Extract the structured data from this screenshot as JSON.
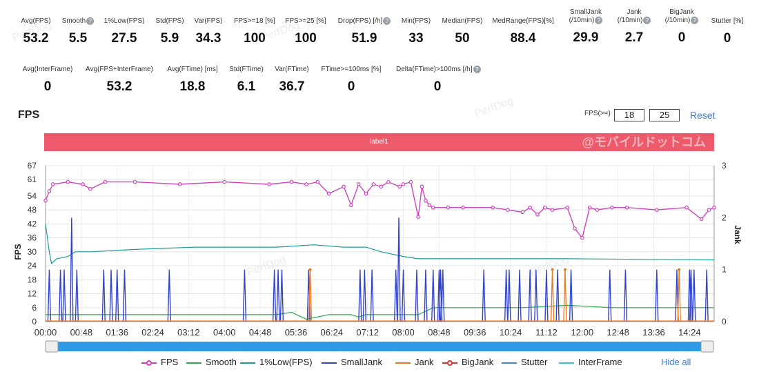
{
  "stats_row1": [
    {
      "label": "Avg(FPS)",
      "value": "53.2",
      "help": false
    },
    {
      "label": "Smooth",
      "value": "5.5",
      "help": true
    },
    {
      "label": "1%Low(FPS)",
      "value": "27.5",
      "help": false
    },
    {
      "label": "Std(FPS)",
      "value": "5.9",
      "help": false
    },
    {
      "label": "Var(FPS)",
      "value": "34.3",
      "help": false
    },
    {
      "label": "FPS>=18 [%]",
      "value": "100",
      "help": false
    },
    {
      "label": "FPS>=25 [%]",
      "value": "100",
      "help": false
    },
    {
      "label": "Drop(FPS) [/h]",
      "value": "51.9",
      "help": true
    },
    {
      "label": "Min(FPS)",
      "value": "33",
      "help": false
    },
    {
      "label": "Median(FPS)",
      "value": "50",
      "help": false
    },
    {
      "label": "MedRange(FPS)[%]",
      "value": "88.4",
      "help": false
    },
    {
      "label": "SmallJank\n(/10min)",
      "value": "29.9",
      "help": true
    },
    {
      "label": "Jank\n(/10min)",
      "value": "2.7",
      "help": true
    },
    {
      "label": "BigJank\n(/10min)",
      "value": "0",
      "help": true
    },
    {
      "label": "Stutter [%]",
      "value": "0",
      "help": false
    }
  ],
  "stats_row2": [
    {
      "label": "Avg(InterFrame)",
      "value": "0",
      "help": false
    },
    {
      "label": "Avg(FPS+InterFrame)",
      "value": "53.2",
      "help": false
    },
    {
      "label": "Avg(FTime) [ms]",
      "value": "18.8",
      "help": false
    },
    {
      "label": "Std(FTime)",
      "value": "6.1",
      "help": false
    },
    {
      "label": "Var(FTime)",
      "value": "36.7",
      "help": false
    },
    {
      "label": "FTime>=100ms [%]",
      "value": "0",
      "help": false
    },
    {
      "label": "Delta(FTime)>100ms [/h]",
      "value": "0",
      "help": true
    }
  ],
  "section_title": "FPS",
  "threshold": {
    "label": "FPS(>=)",
    "low": "18",
    "high": "25",
    "reset_label": "Reset"
  },
  "label_bar": {
    "text": "label1",
    "watermark": "@モバイルドットコム"
  },
  "legend": [
    {
      "name": "FPS",
      "color": "#cc44bb",
      "marker": true
    },
    {
      "name": "Smooth",
      "color": "#2ea84a",
      "marker": false
    },
    {
      "name": "1%Low(FPS)",
      "color": "#1a9a9a",
      "marker": false
    },
    {
      "name": "SmallJank",
      "color": "#3344cc",
      "marker": false
    },
    {
      "name": "Jank",
      "color": "#f07a20",
      "marker": false
    },
    {
      "name": "BigJank",
      "color": "#e03030",
      "marker": true
    },
    {
      "name": "Stutter",
      "color": "#3a86e0",
      "marker": false
    },
    {
      "name": "InterFrame",
      "color": "#30c8d8",
      "marker": false
    }
  ],
  "hide_all_label": "Hide all",
  "chart_data": {
    "type": "line",
    "ylabel": "FPS",
    "y2label": "Jank",
    "y_ticks": [
      0,
      6,
      12,
      18,
      24,
      30,
      36,
      42,
      48,
      54,
      61,
      67
    ],
    "ylim": [
      0,
      67
    ],
    "y2_ticks": [
      0,
      1,
      2,
      3
    ],
    "y2lim": [
      0,
      3
    ],
    "x_ticks": [
      "00:00",
      "00:48",
      "01:36",
      "02:24",
      "03:12",
      "04:00",
      "04:48",
      "05:36",
      "06:24",
      "07:12",
      "08:00",
      "08:48",
      "09:36",
      "10:24",
      "11:12",
      "12:00",
      "12:48",
      "13:36",
      "14:24"
    ],
    "xlim_seconds": [
      0,
      897
    ],
    "grid": true,
    "series": [
      {
        "name": "FPS",
        "axis": "left",
        "x": [
          0,
          5,
          10,
          30,
          50,
          60,
          80,
          120,
          180,
          240,
          300,
          330,
          350,
          365,
          380,
          400,
          410,
          420,
          430,
          440,
          450,
          460,
          475,
          480,
          490,
          500,
          505,
          510,
          515,
          520,
          540,
          560,
          600,
          620,
          640,
          650,
          660,
          670,
          680,
          700,
          710,
          720,
          730,
          740,
          760,
          780,
          820,
          860,
          880,
          890,
          897
        ],
        "values": [
          52,
          56,
          59,
          60,
          59,
          57,
          60,
          60,
          59,
          60,
          59,
          60,
          59,
          60,
          55,
          58,
          50,
          59,
          55,
          59,
          58,
          60,
          58,
          59,
          60,
          45,
          58,
          52,
          50,
          49,
          49,
          49,
          49,
          48,
          47,
          49,
          46,
          49,
          48,
          49,
          40,
          36,
          49,
          48,
          49,
          49,
          48,
          49,
          44,
          48,
          49
        ]
      },
      {
        "name": "Smooth",
        "axis": "left",
        "x": [
          0,
          60,
          120,
          240,
          310,
          330,
          350,
          380,
          410,
          420,
          430,
          500,
          520,
          560,
          600,
          640,
          700,
          760,
          830,
          897
        ],
        "values": [
          3,
          3,
          3,
          3,
          3,
          4,
          1,
          3,
          3,
          2,
          3,
          3,
          6,
          6,
          6,
          6,
          7,
          6,
          6,
          6
        ]
      },
      {
        "name": "1%Low(FPS)",
        "axis": "left",
        "x": [
          0,
          5,
          8,
          15,
          30,
          40,
          60,
          120,
          200,
          260,
          310,
          360,
          400,
          430,
          450,
          480,
          500,
          700,
          897
        ],
        "values": [
          42,
          30,
          25,
          27,
          28,
          30,
          30,
          31,
          32,
          32,
          32,
          33,
          32,
          32,
          30,
          28,
          27,
          27,
          26.5
        ]
      },
      {
        "name": "SmallJank",
        "axis": "right",
        "type": "spikes",
        "x": [
          5,
          20,
          25,
          35,
          42,
          78,
          88,
          96,
          106,
          166,
          267,
          307,
          312,
          317,
          353,
          422,
          428,
          438,
          470,
          474,
          480,
          498,
          510,
          520,
          528,
          530,
          533,
          588,
          618,
          622,
          636,
          650,
          658,
          672,
          687,
          705,
          757,
          778,
          820,
          847,
          864,
          866,
          870,
          887
        ],
        "values": [
          1,
          1,
          1,
          2,
          1,
          1,
          1,
          1,
          1,
          1,
          1,
          1,
          1,
          1,
          1,
          1,
          1,
          1,
          1,
          2,
          1,
          1,
          1,
          1,
          1,
          1,
          1,
          1,
          1,
          1,
          1,
          1,
          1,
          1,
          1,
          1,
          1,
          1,
          1,
          1,
          1,
          1,
          1,
          1
        ]
      },
      {
        "name": "Jank",
        "axis": "right",
        "type": "spikes",
        "x": [
          355,
          680,
          697,
          850
        ],
        "values": [
          1,
          1,
          1,
          1
        ]
      },
      {
        "name": "BigJank",
        "axis": "right",
        "values": []
      },
      {
        "name": "Stutter",
        "axis": "right",
        "values": []
      },
      {
        "name": "InterFrame",
        "axis": "right",
        "values": []
      }
    ]
  },
  "watermarks": [
    "PerfDog",
    "PerfDog",
    "PerfDog",
    "PerfDog",
    "PerfDog"
  ]
}
